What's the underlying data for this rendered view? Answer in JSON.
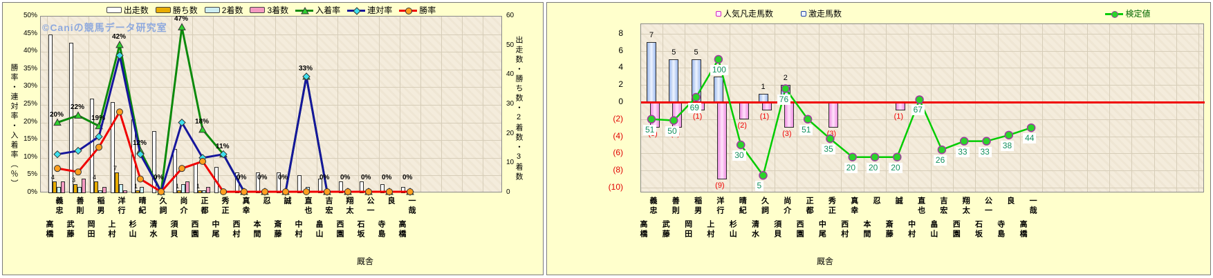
{
  "watermark": {
    "text": "©Caniの競馬データ研究室",
    "color": "#8ea9de"
  },
  "categories": [
    "高橋 義忠",
    "武藤 善則",
    "岡田 稲男",
    "上村 洋行",
    "杉山 晴紀",
    "清水 久詞",
    "須貝 尚介",
    "西園 正都",
    "中尾 秀正",
    "西村 真幸",
    "本間 忍",
    "斎藤 誠",
    "中村 直也",
    "畠山 吉宏",
    "西園 翔太",
    "石坂 公一",
    "寺島 良",
    "高橋 一哉"
  ],
  "chart_data": [
    {
      "type": "bar",
      "subtype": "bar-line-combo",
      "xlabel": "厩舎",
      "ylabel_left": "勝率・連対率・入着率（％）",
      "ylabel_right": "出走数・勝ち数・2着数・3着数",
      "ylim_left_pct": [
        0,
        50
      ],
      "ylim_right_count": [
        0,
        60
      ],
      "y_left_ticks": [
        "0%",
        "5%",
        "10%",
        "15%",
        "20%",
        "25%",
        "30%",
        "35%",
        "40%",
        "45%",
        "50%"
      ],
      "y_right_ticks": [
        "0",
        "10",
        "20",
        "30",
        "40",
        "50",
        "60"
      ],
      "grid": true,
      "legend_position": "top",
      "categories_ref": "categories",
      "bar_series": [
        {
          "name": "出走数",
          "color": "#ffffff",
          "values": [
            54,
            51,
            32,
            31,
            25,
            21,
            15,
            10,
            9,
            7,
            7,
            7,
            6,
            5,
            4,
            4,
            3,
            2
          ]
        },
        {
          "name": "勝ち数",
          "color": "#e8ac00",
          "values": [
            4,
            3,
            4,
            7,
            1,
            0,
            1,
            1,
            0,
            0,
            0,
            0,
            0,
            0,
            0,
            0,
            0,
            0
          ],
          "value_labels": [
            "4",
            "3",
            "4",
            "7",
            "1",
            "",
            "1",
            "1",
            "",
            "",
            "",
            "",
            "",
            "",
            "",
            "",
            "",
            ""
          ]
        },
        {
          "name": "2着数",
          "color": "#cdeef2",
          "values": [
            2,
            2,
            1,
            3,
            2,
            0,
            3,
            1,
            1,
            0,
            0,
            0,
            2,
            0,
            0,
            0,
            0,
            0
          ]
        },
        {
          "name": "3着数",
          "color": "#f49ac1",
          "values": [
            4,
            5,
            2,
            1,
            0,
            0,
            4,
            2,
            0,
            0,
            0,
            0,
            0,
            0,
            0,
            0,
            0,
            0
          ]
        }
      ],
      "line_series": [
        {
          "name": "入着率",
          "color": "#0b8a0b",
          "marker": "triangle",
          "marker_fill": "#2fd12f",
          "values_pct": [
            20,
            22,
            19,
            42,
            12,
            0,
            47,
            18,
            11,
            0,
            0,
            0,
            33,
            0,
            0,
            0,
            0,
            0
          ],
          "value_labels": [
            "20%",
            "22%",
            "19%",
            "42%",
            "12%",
            "0%",
            "47%",
            "18%",
            "11%",
            "0%",
            "0%",
            "0%",
            "33%",
            "0%",
            "0%",
            "0%",
            "0%",
            "0%"
          ]
        },
        {
          "name": "連対率",
          "color": "#16169c",
          "marker": "diamond",
          "marker_fill": "#3fe0ee",
          "values_pct": [
            11,
            12,
            16,
            39,
            11,
            0,
            20,
            10,
            11,
            0,
            0,
            0,
            33,
            0,
            0,
            0,
            0,
            0
          ]
        },
        {
          "name": "勝率",
          "color": "#f00000",
          "marker": "circle",
          "marker_fill": "#ff9f1f",
          "values_pct": [
            7,
            6,
            13,
            23,
            4,
            0,
            7,
            9,
            0,
            0,
            0,
            0,
            0,
            0,
            0,
            0,
            0,
            0
          ]
        }
      ]
    },
    {
      "type": "bar",
      "subtype": "bar-line-combo",
      "xlabel": "厩舎",
      "ylim": [
        -10,
        8
      ],
      "y_ticks": [
        "8",
        "6",
        "4",
        "2",
        "0",
        "(2)",
        "(4)",
        "(6)",
        "(8)",
        "(10)"
      ],
      "negative_tick_color": "#e00000",
      "zero_line_color": "#f00000",
      "grid": true,
      "legend_position": "top",
      "categories_ref": "categories",
      "bar_series": [
        {
          "name": "人気凡走馬数",
          "direction": "down",
          "color_border": "#d020c0",
          "values": [
            3,
            3,
            1,
            9,
            2,
            1,
            3,
            0,
            3,
            0,
            0,
            1,
            0,
            0,
            0,
            0,
            0,
            0
          ],
          "value_labels": [
            "(3)",
            "(3)",
            "(1)",
            "(9)",
            "(2)",
            "(1)",
            "(3)",
            "",
            "(3)",
            "",
            "",
            "(1)",
            "",
            "",
            "",
            "",
            "",
            ""
          ]
        },
        {
          "name": "激走馬数",
          "direction": "up",
          "color_border": "#2040a0",
          "values": [
            7,
            5,
            5,
            3,
            0,
            1,
            2,
            0,
            0,
            0,
            0,
            0,
            0,
            0,
            0,
            0,
            0,
            0
          ],
          "value_labels": [
            "7",
            "5",
            "5",
            "3",
            "",
            "1",
            "2",
            "",
            "",
            "",
            "",
            "",
            "",
            "",
            "",
            "",
            "",
            ""
          ]
        }
      ],
      "line_series": [
        {
          "name": "検定値",
          "color": "#00cc00",
          "marker": "circle",
          "marker_fill": "#2ad42a",
          "marker_edge": "#a03aa0",
          "values": [
            51,
            50,
            69,
            100,
            30,
            5,
            76,
            51,
            35,
            20,
            20,
            20,
            67,
            26,
            33,
            33,
            38,
            44
          ],
          "axis_mapping": "plotted at (value-65)/7 on primary axis"
        }
      ]
    }
  ]
}
